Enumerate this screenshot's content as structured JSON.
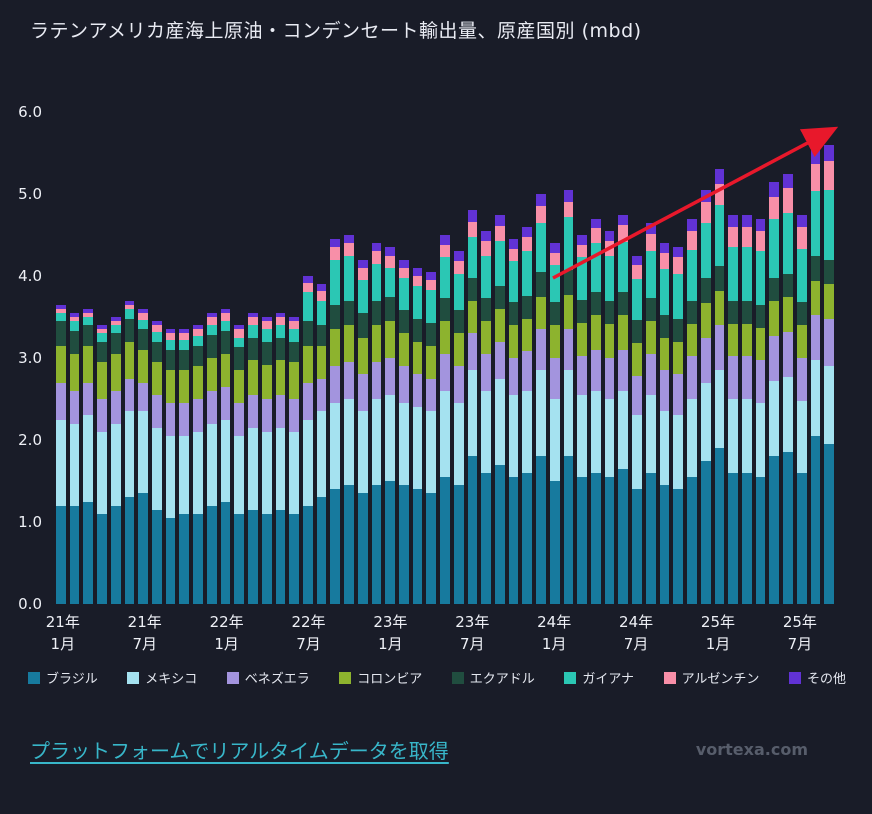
{
  "title": "ラテンアメリカ産海上原油・コンデンセート輸出量、原産国別 (mbd)",
  "footer": {
    "link_text": "プラットフォームでリアルタイムデータを取得",
    "watermark": "vortexa.com"
  },
  "chart_data": {
    "type": "bar",
    "stacked": true,
    "unit": "mbd",
    "ylim": [
      0,
      6
    ],
    "yticks": [
      "0.0",
      "1.0",
      "2.0",
      "3.0",
      "4.0",
      "5.0",
      "6.0"
    ],
    "grid": false,
    "legend_position": "bottom",
    "months": [
      "2021-01",
      "2021-02",
      "2021-03",
      "2021-04",
      "2021-05",
      "2021-06",
      "2021-07",
      "2021-08",
      "2021-09",
      "2021-10",
      "2021-11",
      "2021-12",
      "2022-01",
      "2022-02",
      "2022-03",
      "2022-04",
      "2022-05",
      "2022-06",
      "2022-07",
      "2022-08",
      "2022-09",
      "2022-10",
      "2022-11",
      "2022-12",
      "2023-01",
      "2023-02",
      "2023-03",
      "2023-04",
      "2023-05",
      "2023-06",
      "2023-07",
      "2023-08",
      "2023-09",
      "2023-10",
      "2023-11",
      "2023-12",
      "2024-01",
      "2024-02",
      "2024-03",
      "2024-04",
      "2024-05",
      "2024-06",
      "2024-07",
      "2024-08",
      "2024-09",
      "2024-10",
      "2024-11",
      "2024-12",
      "2025-01",
      "2025-02",
      "2025-03",
      "2025-04",
      "2025-05",
      "2025-06",
      "2025-07",
      "2025-08",
      "2025-09"
    ],
    "x_ticks": [
      {
        "index": 0,
        "year": "21年",
        "month": "1月"
      },
      {
        "index": 6,
        "year": "21年",
        "month": "7月"
      },
      {
        "index": 12,
        "year": "22年",
        "month": "1月"
      },
      {
        "index": 18,
        "year": "22年",
        "month": "7月"
      },
      {
        "index": 24,
        "year": "23年",
        "month": "1月"
      },
      {
        "index": 30,
        "year": "23年",
        "month": "7月"
      },
      {
        "index": 36,
        "year": "24年",
        "month": "1月"
      },
      {
        "index": 42,
        "year": "24年",
        "month": "7月"
      },
      {
        "index": 48,
        "year": "25年",
        "month": "1月"
      },
      {
        "index": 54,
        "year": "25年",
        "month": "7月"
      }
    ],
    "series": [
      {
        "name": "ブラジル",
        "color": "#177a9e",
        "values": [
          1.2,
          1.2,
          1.25,
          1.1,
          1.2,
          1.3,
          1.35,
          1.15,
          1.05,
          1.1,
          1.1,
          1.2,
          1.25,
          1.1,
          1.15,
          1.1,
          1.15,
          1.1,
          1.2,
          1.3,
          1.4,
          1.45,
          1.35,
          1.45,
          1.5,
          1.45,
          1.4,
          1.35,
          1.55,
          1.45,
          1.8,
          1.6,
          1.7,
          1.55,
          1.6,
          1.8,
          1.5,
          1.8,
          1.55,
          1.6,
          1.55,
          1.65,
          1.4,
          1.6,
          1.45,
          1.4,
          1.55,
          1.75,
          1.9,
          1.6,
          1.6,
          1.55,
          1.8,
          1.85,
          1.6,
          2.05,
          1.95
        ]
      },
      {
        "name": "メキシコ",
        "color": "#a5e2f0",
        "values": [
          1.05,
          1.0,
          1.05,
          1.0,
          1.0,
          1.05,
          1.0,
          1.0,
          1.0,
          0.95,
          1.0,
          1.0,
          1.0,
          0.95,
          1.0,
          1.0,
          1.0,
          1.0,
          1.05,
          1.05,
          1.05,
          1.05,
          1.0,
          1.05,
          1.05,
          1.0,
          1.0,
          1.0,
          1.05,
          1.0,
          1.05,
          1.0,
          1.05,
          1.0,
          1.0,
          1.05,
          1.0,
          1.05,
          1.0,
          1.0,
          0.95,
          0.95,
          0.9,
          0.95,
          0.9,
          0.9,
          0.95,
          0.95,
          0.95,
          0.9,
          0.9,
          0.9,
          0.92,
          0.92,
          0.88,
          0.92,
          0.95
        ]
      },
      {
        "name": "ベネズエラ",
        "color": "#a394de",
        "values": [
          0.45,
          0.4,
          0.4,
          0.4,
          0.4,
          0.4,
          0.35,
          0.4,
          0.4,
          0.4,
          0.4,
          0.4,
          0.4,
          0.4,
          0.4,
          0.4,
          0.4,
          0.4,
          0.45,
          0.4,
          0.45,
          0.45,
          0.45,
          0.45,
          0.45,
          0.45,
          0.4,
          0.4,
          0.45,
          0.45,
          0.45,
          0.45,
          0.45,
          0.45,
          0.48,
          0.5,
          0.5,
          0.5,
          0.48,
          0.5,
          0.5,
          0.5,
          0.48,
          0.5,
          0.5,
          0.5,
          0.52,
          0.55,
          0.55,
          0.52,
          0.52,
          0.52,
          0.55,
          0.55,
          0.52,
          0.55,
          0.58
        ]
      },
      {
        "name": "コロンビア",
        "color": "#8db32e",
        "values": [
          0.45,
          0.45,
          0.45,
          0.45,
          0.45,
          0.45,
          0.4,
          0.4,
          0.4,
          0.4,
          0.4,
          0.4,
          0.4,
          0.4,
          0.42,
          0.42,
          0.42,
          0.45,
          0.45,
          0.4,
          0.45,
          0.45,
          0.45,
          0.45,
          0.45,
          0.4,
          0.4,
          0.4,
          0.4,
          0.4,
          0.4,
          0.4,
          0.4,
          0.4,
          0.4,
          0.4,
          0.4,
          0.42,
          0.4,
          0.42,
          0.42,
          0.42,
          0.4,
          0.4,
          0.4,
          0.4,
          0.4,
          0.42,
          0.42,
          0.4,
          0.4,
          0.4,
          0.42,
          0.42,
          0.4,
          0.42,
          0.42
        ]
      },
      {
        "name": "エクアドル",
        "color": "#204d3f",
        "values": [
          0.3,
          0.28,
          0.25,
          0.25,
          0.25,
          0.28,
          0.25,
          0.25,
          0.25,
          0.25,
          0.25,
          0.28,
          0.28,
          0.28,
          0.28,
          0.28,
          0.28,
          0.25,
          0.3,
          0.25,
          0.3,
          0.3,
          0.3,
          0.3,
          0.3,
          0.28,
          0.28,
          0.28,
          0.28,
          0.28,
          0.28,
          0.28,
          0.28,
          0.28,
          0.28,
          0.3,
          0.28,
          0.3,
          0.28,
          0.28,
          0.28,
          0.28,
          0.28,
          0.28,
          0.28,
          0.28,
          0.28,
          0.3,
          0.3,
          0.28,
          0.28,
          0.28,
          0.28,
          0.28,
          0.28,
          0.3,
          0.3
        ]
      },
      {
        "name": "ガイアナ",
        "color": "#2bc7b4",
        "values": [
          0.1,
          0.12,
          0.1,
          0.1,
          0.1,
          0.12,
          0.12,
          0.12,
          0.12,
          0.12,
          0.12,
          0.12,
          0.12,
          0.12,
          0.15,
          0.15,
          0.15,
          0.15,
          0.35,
          0.3,
          0.55,
          0.55,
          0.4,
          0.45,
          0.35,
          0.4,
          0.4,
          0.4,
          0.5,
          0.45,
          0.5,
          0.52,
          0.55,
          0.5,
          0.55,
          0.6,
          0.45,
          0.65,
          0.52,
          0.6,
          0.55,
          0.62,
          0.5,
          0.58,
          0.55,
          0.55,
          0.62,
          0.68,
          0.75,
          0.65,
          0.65,
          0.65,
          0.72,
          0.75,
          0.65,
          0.8,
          0.85
        ]
      },
      {
        "name": "アルゼンチン",
        "color": "#f88fa8",
        "values": [
          0.05,
          0.05,
          0.05,
          0.05,
          0.05,
          0.05,
          0.08,
          0.08,
          0.08,
          0.08,
          0.08,
          0.1,
          0.1,
          0.1,
          0.1,
          0.1,
          0.1,
          0.1,
          0.12,
          0.12,
          0.15,
          0.15,
          0.15,
          0.15,
          0.15,
          0.12,
          0.12,
          0.12,
          0.15,
          0.15,
          0.18,
          0.18,
          0.18,
          0.15,
          0.17,
          0.2,
          0.15,
          0.18,
          0.15,
          0.18,
          0.18,
          0.2,
          0.17,
          0.2,
          0.2,
          0.2,
          0.23,
          0.25,
          0.25,
          0.25,
          0.25,
          0.25,
          0.28,
          0.3,
          0.27,
          0.33,
          0.35
        ]
      },
      {
        "name": "その他",
        "color": "#6132d4",
        "values": [
          0.05,
          0.05,
          0.05,
          0.05,
          0.05,
          0.05,
          0.05,
          0.05,
          0.05,
          0.05,
          0.05,
          0.05,
          0.05,
          0.05,
          0.05,
          0.05,
          0.05,
          0.05,
          0.08,
          0.08,
          0.1,
          0.1,
          0.1,
          0.1,
          0.1,
          0.1,
          0.1,
          0.1,
          0.12,
          0.12,
          0.14,
          0.12,
          0.14,
          0.12,
          0.12,
          0.15,
          0.12,
          0.15,
          0.12,
          0.12,
          0.12,
          0.13,
          0.12,
          0.14,
          0.12,
          0.12,
          0.15,
          0.15,
          0.18,
          0.15,
          0.15,
          0.15,
          0.18,
          0.18,
          0.15,
          0.18,
          0.2
        ]
      }
    ],
    "annotation": {
      "type": "trend_arrow",
      "color": "#e8182b",
      "from_month": "2024-04",
      "from_value": 4.0,
      "to_month": "2025-09",
      "to_value": 5.8
    }
  }
}
